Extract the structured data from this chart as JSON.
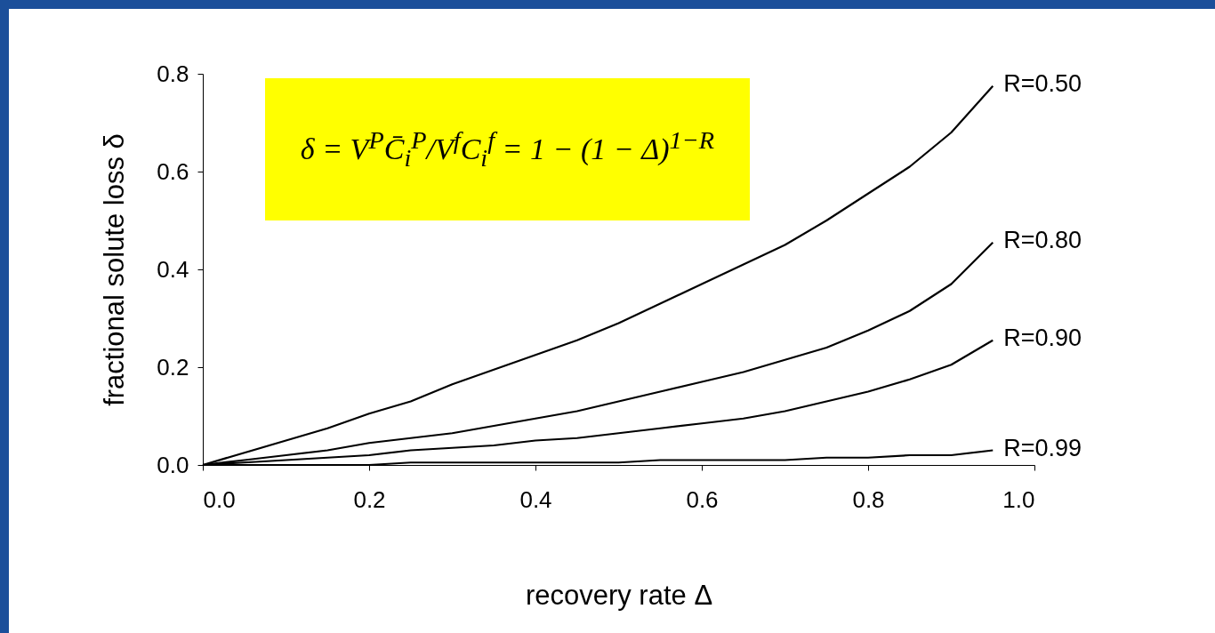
{
  "chart_data": {
    "type": "line",
    "xlabel": "recovery rate Δ",
    "ylabel": "fractional solute loss δ",
    "x": [
      0,
      0.05,
      0.1,
      0.15,
      0.2,
      0.25,
      0.3,
      0.35,
      0.4,
      0.45,
      0.5,
      0.55,
      0.6,
      0.65,
      0.7,
      0.75,
      0.8,
      0.85,
      0.9,
      0.95
    ],
    "series": [
      {
        "name": "R=0.50",
        "color": "#000000",
        "values": [
          0,
          0.025,
          0.05,
          0.075,
          0.105,
          0.13,
          0.165,
          0.195,
          0.225,
          0.255,
          0.29,
          0.33,
          0.37,
          0.41,
          0.45,
          0.5,
          0.555,
          0.61,
          0.68,
          0.775
        ]
      },
      {
        "name": "R=0.80",
        "color": "#000000",
        "values": [
          0,
          0.01,
          0.02,
          0.03,
          0.045,
          0.055,
          0.065,
          0.08,
          0.095,
          0.11,
          0.13,
          0.15,
          0.17,
          0.19,
          0.215,
          0.24,
          0.275,
          0.315,
          0.37,
          0.455
        ]
      },
      {
        "name": "R=0.90",
        "color": "#000000",
        "values": [
          0,
          0.005,
          0.01,
          0.015,
          0.02,
          0.03,
          0.035,
          0.04,
          0.05,
          0.055,
          0.065,
          0.075,
          0.085,
          0.095,
          0.11,
          0.13,
          0.15,
          0.175,
          0.205,
          0.255
        ]
      },
      {
        "name": "R=0.99",
        "color": "#000000",
        "values": [
          0,
          0,
          0,
          0,
          0,
          0.005,
          0.005,
          0.005,
          0.005,
          0.005,
          0.005,
          0.01,
          0.01,
          0.01,
          0.01,
          0.015,
          0.015,
          0.02,
          0.02,
          0.03
        ]
      }
    ],
    "xlim": [
      0,
      1
    ],
    "xticks": [
      {
        "value": 0,
        "label": "0.0"
      },
      0.2,
      0.4,
      0.6,
      0.8,
      {
        "value": 1,
        "label": "1.0"
      }
    ],
    "ylim": [
      0,
      0.8
    ],
    "yticks": [
      {
        "value": 0,
        "label": "0.0"
      },
      0.2,
      0.4,
      0.6,
      0.8
    ],
    "annotations": [
      "δ = V$^{P}$C̄$_{i}$$^{P}$/V$^{f}$C$_{i}$$^{f}$ = 1 − (1 − Δ)$^{1−R}$"
    ]
  }
}
